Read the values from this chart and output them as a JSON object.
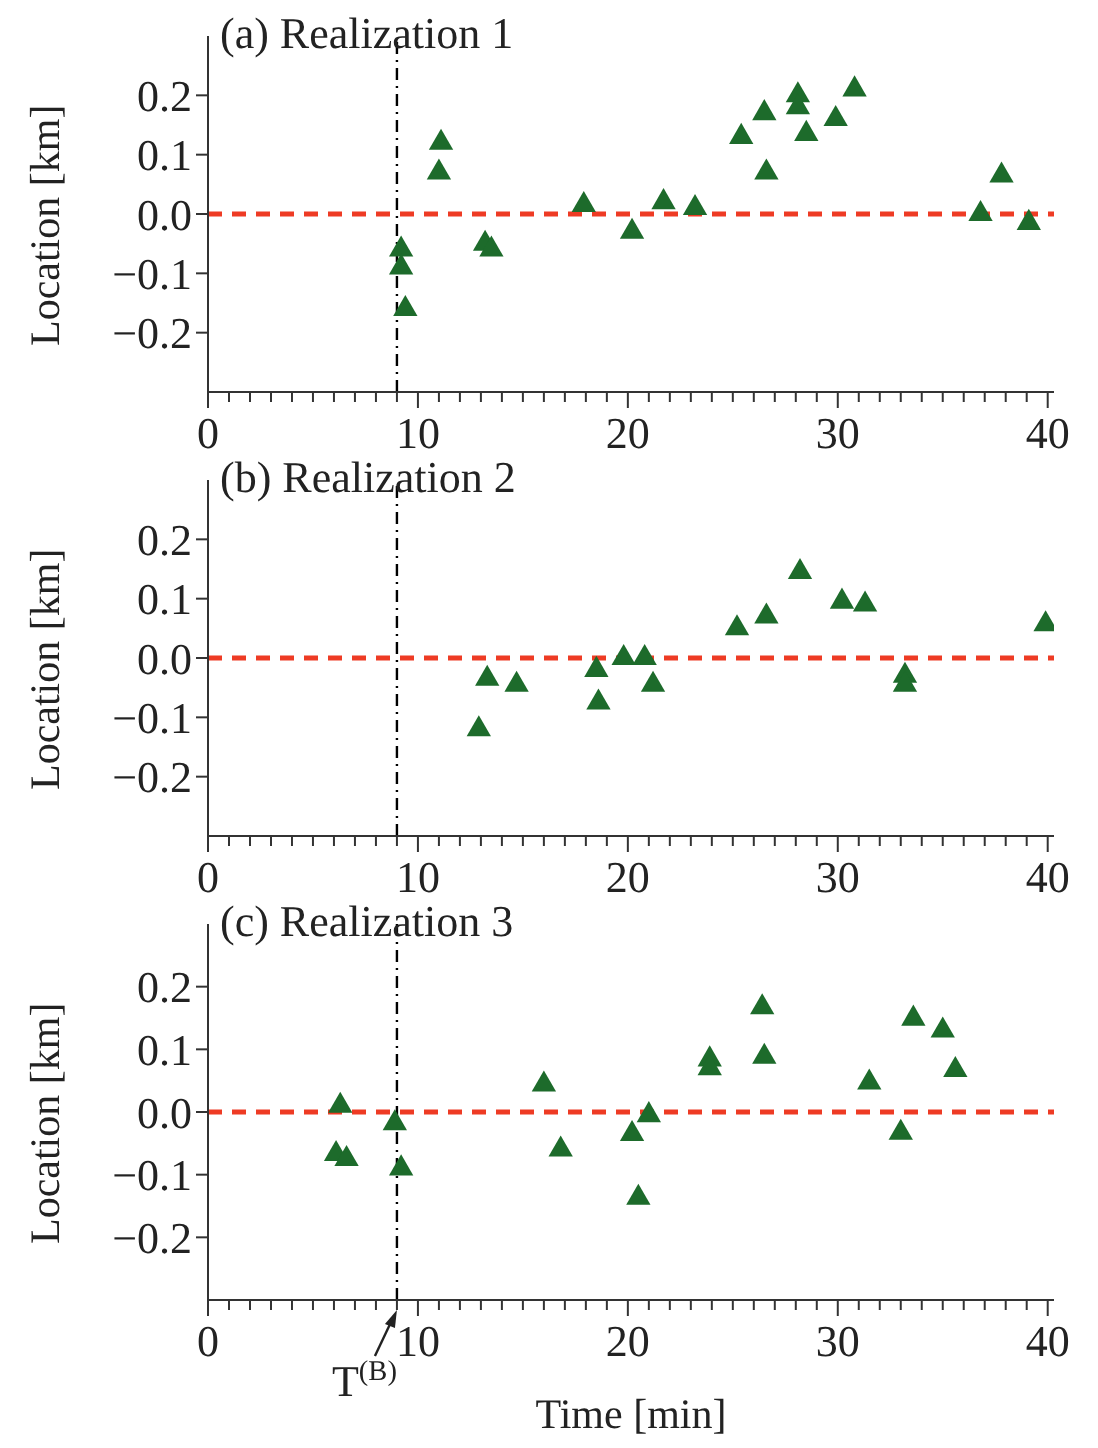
{
  "chart_data": [
    {
      "type": "scatter",
      "title": "(a) Realization 1",
      "ylabel": "Location [km]",
      "color": "#1d6b2b",
      "marker": "triangle",
      "x": [
        9.2,
        9.2,
        9.4,
        11.1,
        11.0,
        13.2,
        13.5,
        17.9,
        20.2,
        21.7,
        23.2,
        25.4,
        26.5,
        26.6,
        28.1,
        28.1,
        28.5,
        29.9,
        30.8,
        36.8,
        37.8,
        39.1
      ],
      "values": [
        -0.06,
        -0.09,
        -0.16,
        0.12,
        0.07,
        -0.05,
        -0.06,
        0.015,
        -0.03,
        0.02,
        0.01,
        0.13,
        0.17,
        0.07,
        0.2,
        0.18,
        0.135,
        0.16,
        0.21,
        0.0,
        0.065,
        -0.015
      ],
      "xlim": [
        0,
        40.3
      ],
      "ylim": [
        -0.3,
        0.3
      ],
      "xticks": [
        0,
        {
          "value": 1,
          "label": null
        },
        {
          "value": 2,
          "label": null
        },
        {
          "value": 3,
          "label": null
        },
        {
          "value": 4,
          "label": null
        },
        {
          "value": 5,
          "label": null
        },
        {
          "value": 6,
          "label": null
        },
        {
          "value": 7,
          "label": null
        },
        {
          "value": 8,
          "label": null
        },
        {
          "value": 9,
          "label": null
        },
        10,
        {
          "value": 11,
          "label": null
        },
        {
          "value": 12,
          "label": null
        },
        {
          "value": 13,
          "label": null
        },
        {
          "value": 14,
          "label": null
        },
        {
          "value": 15,
          "label": null
        },
        {
          "value": 16,
          "label": null
        },
        {
          "value": 17,
          "label": null
        },
        {
          "value": 18,
          "label": null
        },
        {
          "value": 19,
          "label": null
        },
        20,
        {
          "value": 21,
          "label": null
        },
        {
          "value": 22,
          "label": null
        },
        {
          "value": 23,
          "label": null
        },
        {
          "value": 24,
          "label": null
        },
        {
          "value": 25,
          "label": null
        },
        {
          "value": 26,
          "label": null
        },
        {
          "value": 27,
          "label": null
        },
        {
          "value": 28,
          "label": null
        },
        {
          "value": 29,
          "label": null
        },
        30,
        {
          "value": 31,
          "label": null
        },
        {
          "value": 32,
          "label": null
        },
        {
          "value": 33,
          "label": null
        },
        {
          "value": 34,
          "label": null
        },
        {
          "value": 35,
          "label": null
        },
        {
          "value": 36,
          "label": null
        },
        {
          "value": 37,
          "label": null
        },
        {
          "value": 38,
          "label": null
        },
        {
          "value": 39,
          "label": null
        },
        40
      ],
      "yticks": [
        {
          "value": -0.2,
          "label": "−0.2"
        },
        {
          "value": -0.1,
          "label": "−0.1"
        },
        {
          "value": 0,
          "label": "0.0"
        },
        {
          "value": 0.1,
          "label": "0.1"
        },
        {
          "value": 0.2,
          "label": "0.2"
        }
      ],
      "ref_lines": [
        {
          "axis": "y",
          "value": 0,
          "color": "#ee3b24",
          "line_style": "dashed"
        },
        {
          "axis": "x",
          "value": 9,
          "color": "#000000",
          "line_style": "dashdot"
        }
      ]
    },
    {
      "type": "scatter",
      "title": "(b) Realization 2",
      "ylabel": "Location [km]",
      "color": "#1d6b2b",
      "marker": "triangle",
      "x": [
        12.9,
        13.3,
        14.7,
        18.5,
        18.6,
        19.8,
        20.8,
        21.2,
        25.2,
        26.6,
        28.2,
        30.2,
        31.3,
        33.2,
        33.2,
        39.9
      ],
      "values": [
        -0.12,
        -0.035,
        -0.045,
        -0.02,
        -0.075,
        0.0,
        0.0,
        -0.045,
        0.05,
        0.07,
        0.145,
        0.095,
        0.09,
        -0.03,
        -0.045,
        0.057
      ],
      "xlim": [
        0,
        40.3
      ],
      "ylim": [
        -0.3,
        0.3
      ],
      "xticks": [
        0,
        {
          "value": 1,
          "label": null
        },
        {
          "value": 2,
          "label": null
        },
        {
          "value": 3,
          "label": null
        },
        {
          "value": 4,
          "label": null
        },
        {
          "value": 5,
          "label": null
        },
        {
          "value": 6,
          "label": null
        },
        {
          "value": 7,
          "label": null
        },
        {
          "value": 8,
          "label": null
        },
        {
          "value": 9,
          "label": null
        },
        10,
        {
          "value": 11,
          "label": null
        },
        {
          "value": 12,
          "label": null
        },
        {
          "value": 13,
          "label": null
        },
        {
          "value": 14,
          "label": null
        },
        {
          "value": 15,
          "label": null
        },
        {
          "value": 16,
          "label": null
        },
        {
          "value": 17,
          "label": null
        },
        {
          "value": 18,
          "label": null
        },
        {
          "value": 19,
          "label": null
        },
        20,
        {
          "value": 21,
          "label": null
        },
        {
          "value": 22,
          "label": null
        },
        {
          "value": 23,
          "label": null
        },
        {
          "value": 24,
          "label": null
        },
        {
          "value": 25,
          "label": null
        },
        {
          "value": 26,
          "label": null
        },
        {
          "value": 27,
          "label": null
        },
        {
          "value": 28,
          "label": null
        },
        {
          "value": 29,
          "label": null
        },
        30,
        {
          "value": 31,
          "label": null
        },
        {
          "value": 32,
          "label": null
        },
        {
          "value": 33,
          "label": null
        },
        {
          "value": 34,
          "label": null
        },
        {
          "value": 35,
          "label": null
        },
        {
          "value": 36,
          "label": null
        },
        {
          "value": 37,
          "label": null
        },
        {
          "value": 38,
          "label": null
        },
        {
          "value": 39,
          "label": null
        },
        40
      ],
      "yticks": [
        {
          "value": -0.2,
          "label": "−0.2"
        },
        {
          "value": -0.1,
          "label": "−0.1"
        },
        {
          "value": 0,
          "label": "0.0"
        },
        {
          "value": 0.1,
          "label": "0.1"
        },
        {
          "value": 0.2,
          "label": "0.2"
        }
      ],
      "ref_lines": [
        {
          "axis": "y",
          "value": 0,
          "color": "#ee3b24",
          "line_style": "dashed"
        },
        {
          "axis": "x",
          "value": 9,
          "color": "#000000",
          "line_style": "dashdot"
        }
      ]
    },
    {
      "type": "scatter",
      "title": "(c) Realization 3",
      "ylabel": "Location [km]",
      "xlabel": "Time [min]",
      "color": "#1d6b2b",
      "marker": "triangle",
      "x": [
        6.3,
        6.1,
        6.6,
        8.9,
        9.2,
        16.0,
        16.8,
        20.2,
        21.0,
        20.5,
        23.9,
        23.9,
        26.4,
        26.5,
        31.5,
        33.0,
        33.6,
        35.0,
        35.6
      ],
      "values": [
        0.01,
        -0.067,
        -0.075,
        -0.018,
        -0.09,
        0.044,
        -0.06,
        -0.035,
        -0.005,
        -0.137,
        0.084,
        0.07,
        0.167,
        0.088,
        0.047,
        -0.033,
        0.149,
        0.13,
        0.067
      ],
      "xlim": [
        0,
        40.3
      ],
      "ylim": [
        -0.3,
        0.3
      ],
      "xticks": [
        0,
        {
          "value": 1,
          "label": null
        },
        {
          "value": 2,
          "label": null
        },
        {
          "value": 3,
          "label": null
        },
        {
          "value": 4,
          "label": null
        },
        {
          "value": 5,
          "label": null
        },
        {
          "value": 6,
          "label": null
        },
        {
          "value": 7,
          "label": null
        },
        {
          "value": 8,
          "label": null
        },
        {
          "value": 9,
          "label": null
        },
        10,
        {
          "value": 11,
          "label": null
        },
        {
          "value": 12,
          "label": null
        },
        {
          "value": 13,
          "label": null
        },
        {
          "value": 14,
          "label": null
        },
        {
          "value": 15,
          "label": null
        },
        {
          "value": 16,
          "label": null
        },
        {
          "value": 17,
          "label": null
        },
        {
          "value": 18,
          "label": null
        },
        {
          "value": 19,
          "label": null
        },
        20,
        {
          "value": 21,
          "label": null
        },
        {
          "value": 22,
          "label": null
        },
        {
          "value": 23,
          "label": null
        },
        {
          "value": 24,
          "label": null
        },
        {
          "value": 25,
          "label": null
        },
        {
          "value": 26,
          "label": null
        },
        {
          "value": 27,
          "label": null
        },
        {
          "value": 28,
          "label": null
        },
        {
          "value": 29,
          "label": null
        },
        30,
        {
          "value": 31,
          "label": null
        },
        {
          "value": 32,
          "label": null
        },
        {
          "value": 33,
          "label": null
        },
        {
          "value": 34,
          "label": null
        },
        {
          "value": 35,
          "label": null
        },
        {
          "value": 36,
          "label": null
        },
        {
          "value": 37,
          "label": null
        },
        {
          "value": 38,
          "label": null
        },
        {
          "value": 39,
          "label": null
        },
        40
      ],
      "yticks": [
        {
          "value": -0.2,
          "label": "−0.2"
        },
        {
          "value": -0.1,
          "label": "−0.1"
        },
        {
          "value": 0,
          "label": "0.0"
        },
        {
          "value": 0.1,
          "label": "0.1"
        },
        {
          "value": 0.2,
          "label": "0.2"
        }
      ],
      "ref_lines": [
        {
          "axis": "y",
          "value": 0,
          "color": "#ee3b24",
          "line_style": "dashed"
        },
        {
          "axis": "x",
          "value": 9,
          "color": "#000000",
          "line_style": "dashdot"
        }
      ],
      "annotations": [
        {
          "text": "T$^{(B)}$",
          "x": 9,
          "y": -0.3
        }
      ]
    }
  ]
}
